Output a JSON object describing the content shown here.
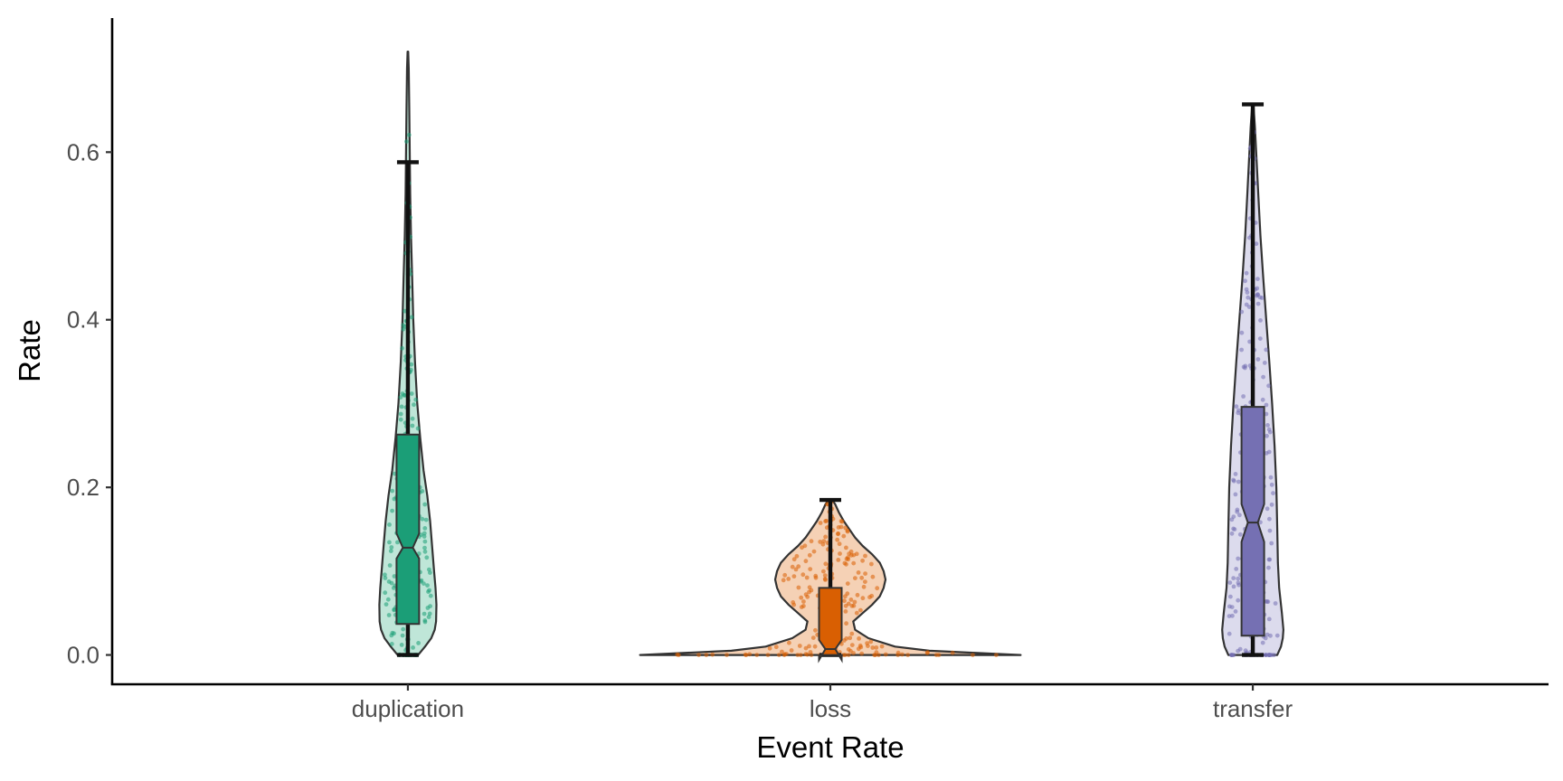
{
  "chart_data": {
    "type": "violin",
    "title": "",
    "xlabel": "Event Rate",
    "ylabel": "Rate",
    "ylim": [
      -0.035,
      0.76
    ],
    "yticks": [
      0.0,
      0.2,
      0.4,
      0.6
    ],
    "ytick_labels": [
      "0.0",
      "0.2",
      "0.4",
      "0.6"
    ],
    "grid": false,
    "legend": "none",
    "categories": [
      "duplication",
      "loss",
      "transfer"
    ],
    "series": [
      {
        "category": "duplication",
        "color": "#1b9e77",
        "fill": "#bfe6d8",
        "box": {
          "q1": 0.037,
          "median": 0.128,
          "q3": 0.263,
          "whisker_low": 0.0,
          "whisker_high": 0.588,
          "notch_low": 0.115,
          "notch_high": 0.145
        },
        "violin": {
          "range": [
            0.0,
            0.72
          ],
          "profile": [
            [
              0.0,
              0.36
            ],
            [
              0.01,
              0.6
            ],
            [
              0.02,
              0.82
            ],
            [
              0.03,
              0.94
            ],
            [
              0.04,
              0.99
            ],
            [
              0.06,
              1.0
            ],
            [
              0.08,
              0.97
            ],
            [
              0.1,
              0.92
            ],
            [
              0.13,
              0.85
            ],
            [
              0.16,
              0.78
            ],
            [
              0.19,
              0.68
            ],
            [
              0.22,
              0.55
            ],
            [
              0.26,
              0.43
            ],
            [
              0.3,
              0.33
            ],
            [
              0.35,
              0.25
            ],
            [
              0.4,
              0.19
            ],
            [
              0.45,
              0.15
            ],
            [
              0.5,
              0.11
            ],
            [
              0.55,
              0.08
            ],
            [
              0.6,
              0.065
            ],
            [
              0.65,
              0.05
            ],
            [
              0.7,
              0.03
            ],
            [
              0.72,
              0.01
            ]
          ],
          "half_width_data": 0.034
        }
      },
      {
        "category": "loss",
        "color": "#d95f02",
        "fill": "#f5d1b5",
        "box": {
          "q1": 0.0,
          "median": 0.007,
          "q3": 0.08,
          "whisker_low": 0.0,
          "whisker_high": 0.185,
          "notch_low": -0.006,
          "notch_high": 0.018
        },
        "violin": {
          "range": [
            0.0,
            0.185
          ],
          "profile": [
            [
              0.0,
              1.0
            ],
            [
              0.005,
              0.52
            ],
            [
              0.01,
              0.34
            ],
            [
              0.02,
              0.2
            ],
            [
              0.03,
              0.13
            ],
            [
              0.04,
              0.12
            ],
            [
              0.05,
              0.17
            ],
            [
              0.06,
              0.22
            ],
            [
              0.07,
              0.26
            ],
            [
              0.08,
              0.28
            ],
            [
              0.09,
              0.29
            ],
            [
              0.1,
              0.28
            ],
            [
              0.11,
              0.26
            ],
            [
              0.12,
              0.22
            ],
            [
              0.13,
              0.17
            ],
            [
              0.14,
              0.13
            ],
            [
              0.15,
              0.1
            ],
            [
              0.16,
              0.07
            ],
            [
              0.17,
              0.045
            ],
            [
              0.18,
              0.025
            ],
            [
              0.185,
              0.01
            ]
          ],
          "half_width_data": 0.227
        }
      },
      {
        "category": "transfer",
        "color": "#7570b3",
        "fill": "#dcdbed",
        "box": {
          "q1": 0.023,
          "median": 0.158,
          "q3": 0.296,
          "whisker_low": 0.0,
          "whisker_high": 0.657,
          "notch_low": 0.135,
          "notch_high": 0.18
        },
        "violin": {
          "range": [
            0.0,
            0.657
          ],
          "profile": [
            [
              0.0,
              0.8
            ],
            [
              0.01,
              0.92
            ],
            [
              0.02,
              0.98
            ],
            [
              0.03,
              1.0
            ],
            [
              0.05,
              0.95
            ],
            [
              0.08,
              0.86
            ],
            [
              0.11,
              0.82
            ],
            [
              0.15,
              0.8
            ],
            [
              0.2,
              0.77
            ],
            [
              0.25,
              0.71
            ],
            [
              0.3,
              0.63
            ],
            [
              0.35,
              0.54
            ],
            [
              0.4,
              0.44
            ],
            [
              0.45,
              0.34
            ],
            [
              0.5,
              0.25
            ],
            [
              0.55,
              0.18
            ],
            [
              0.6,
              0.11
            ],
            [
              0.63,
              0.07
            ],
            [
              0.657,
              0.02
            ]
          ],
          "half_width_data": 0.0365
        }
      }
    ]
  }
}
